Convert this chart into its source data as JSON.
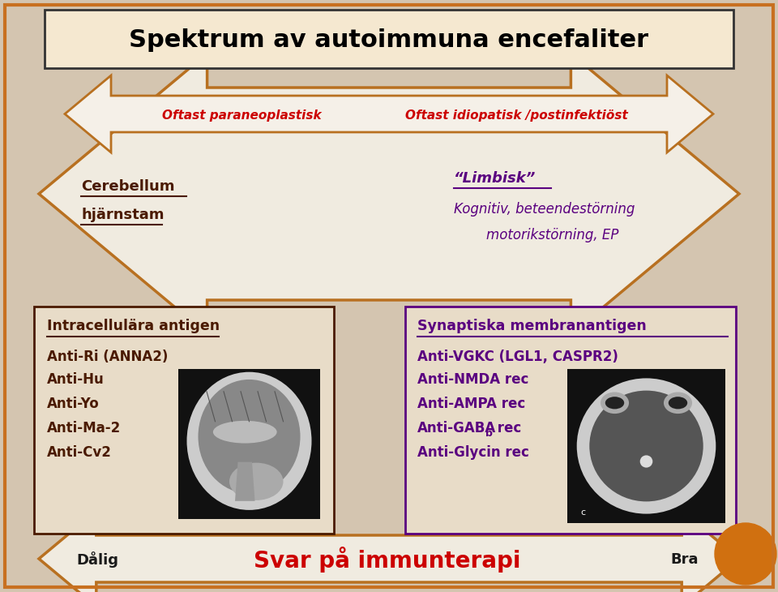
{
  "title": "Spektrum av autoimmuna encefaliter",
  "bg_color": "#d4c5b0",
  "outer_border_color": "#c87020",
  "title_box_facecolor": "#f5e8d0",
  "title_fontsize": 22,
  "arrow_color": "#b87020",
  "arrow_fill_outer": "#e8dcc8",
  "arrow_fill_inner": "#f5f0e8",
  "left_label": "Oftast paraneoplastisk",
  "right_label": "Oftast idiopatisk /postinfektiöst",
  "label_color": "#cc0000",
  "cerebellum_text1": "Cerebellum",
  "cerebellum_text2": "hjärnstam",
  "cerebellum_color": "#4a1a00",
  "limbisk_title": "“Limbisk”",
  "limbisk_body1": "Kognitiv, beteendestörning",
  "limbisk_body2": "motorikstörning, EP",
  "limbisk_color": "#5a0080",
  "left_box_title": "Intracellulära antigen",
  "left_box_items": [
    "Anti-Ri (ANNA2)",
    "Anti-Hu",
    "Anti-Yo",
    "Anti-Ma-2",
    "Anti-Cv2"
  ],
  "left_box_color": "#4a1a00",
  "right_box_title": "Synaptiska membranantigen",
  "right_box_items_base": [
    "Anti-VGKC (LGL1, CASPR2)",
    "Anti-NMDA rec",
    "Anti-AMPA rec",
    "Anti-GABA",
    "Anti-Glycin rec"
  ],
  "right_box_color": "#5a0080",
  "bottom_left": "Dålig",
  "bottom_right": "Bra",
  "bottom_center": "Svar på immunterapi",
  "bottom_center_color": "#cc0000",
  "bottom_text_color": "#1a1a1a",
  "box_border_color": "#4a1a00",
  "right_box_border_color": "#5a0080",
  "orange_circle_color": "#d07010",
  "box_bg": "#e8dcc8"
}
